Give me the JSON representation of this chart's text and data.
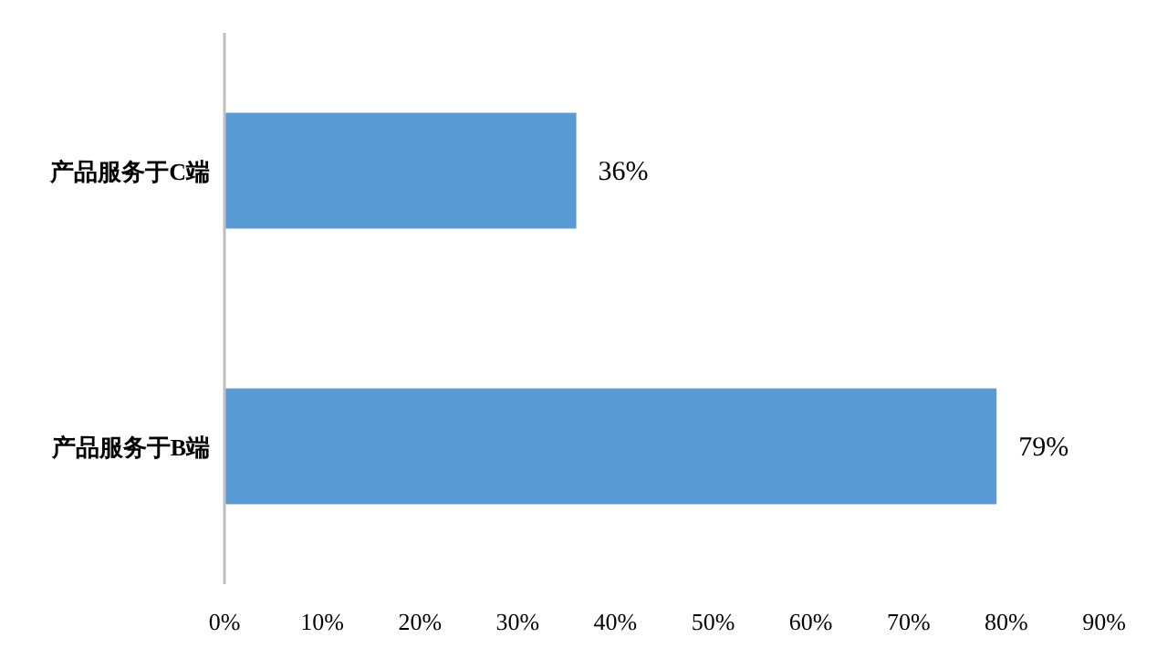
{
  "chart_data": {
    "type": "bar",
    "orientation": "horizontal",
    "categories": [
      "产品服务于C端",
      "产品服务于B端"
    ],
    "values": [
      36,
      79
    ],
    "value_labels": [
      "36%",
      "79%"
    ],
    "color": "#5b9bd5",
    "xlim": [
      0,
      90
    ],
    "xticks": [
      {
        "value": 0,
        "label": "0%"
      },
      {
        "value": 10,
        "label": "10%"
      },
      {
        "value": 20,
        "label": "20%"
      },
      {
        "value": 30,
        "label": "30%"
      },
      {
        "value": 40,
        "label": "40%"
      },
      {
        "value": 50,
        "label": "50%"
      },
      {
        "value": 60,
        "label": "60%"
      },
      {
        "value": 70,
        "label": "70%"
      },
      {
        "value": 80,
        "label": "80%"
      },
      {
        "value": 90,
        "label": "90%"
      }
    ],
    "grid": false
  }
}
